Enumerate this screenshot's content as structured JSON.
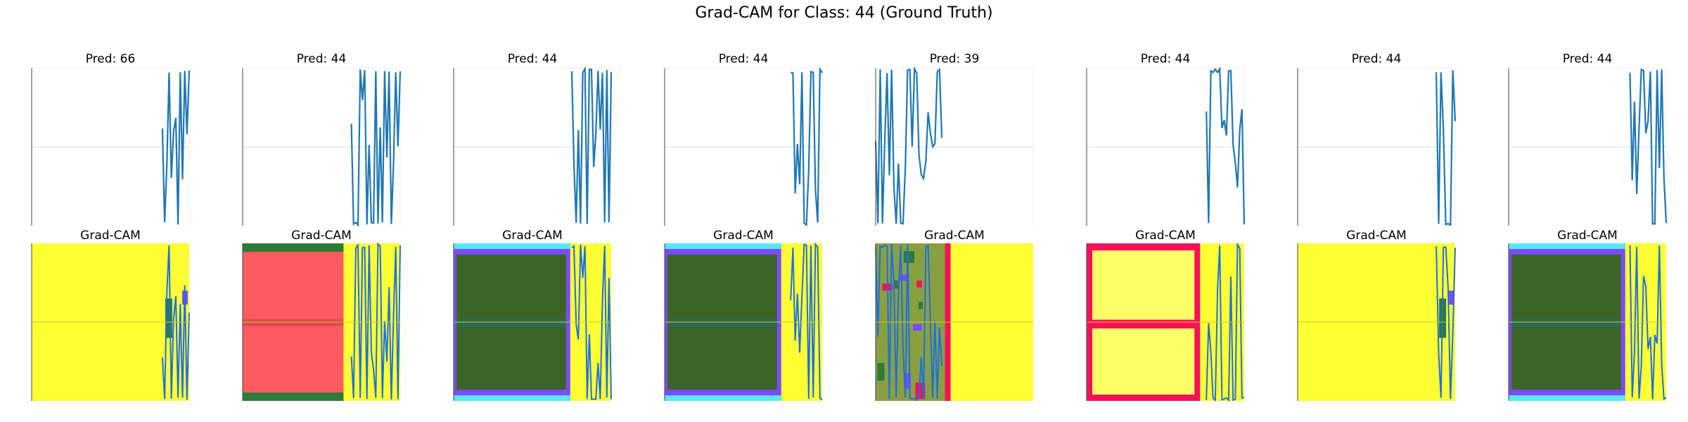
{
  "figure": {
    "title": "Grad-CAM for Class: 44 (Ground Truth)"
  },
  "colors": {
    "signal": "#1f77b4",
    "cam_yellow": "#ffff33",
    "cam_pale_yellow": "#ffff66",
    "cam_red": "#ff5a5f",
    "cam_crimson": "#f5115a",
    "cam_olive": "#3d6426",
    "cam_green": "#2f7a3a",
    "cam_purple": "#7a4cff",
    "cam_cyan": "#55e8ff",
    "axis": "#444444",
    "grid": "#dddddd"
  },
  "chart_data": {
    "type": "line",
    "grid": true,
    "panels": [
      {
        "pred_title": "Pred: 66",
        "cam_title": "Grad-CAM",
        "signal_region": [
          0.83,
          1.0
        ],
        "cam_style": "yellow_edge"
      },
      {
        "pred_title": "Pred: 44",
        "cam_title": "Grad-CAM",
        "signal_region": [
          0.69,
          1.0
        ],
        "cam_style": "red_block"
      },
      {
        "pred_title": "Pred: 44",
        "cam_title": "Grad-CAM",
        "signal_region": [
          0.75,
          1.0
        ],
        "cam_style": "olive_block"
      },
      {
        "pred_title": "Pred: 44",
        "cam_title": "Grad-CAM",
        "signal_region": [
          0.8,
          1.0
        ],
        "cam_style": "olive_block"
      },
      {
        "pred_title": "Pred: 39",
        "cam_title": "Grad-CAM",
        "signal_region": [
          0.0,
          0.42
        ],
        "cam_style": "left_mixed"
      },
      {
        "pred_title": "Pred: 44",
        "cam_title": "Grad-CAM",
        "signal_region": [
          0.76,
          1.0
        ],
        "cam_style": "pale_split"
      },
      {
        "pred_title": "Pred: 44",
        "cam_title": "Grad-CAM",
        "signal_region": [
          0.88,
          1.0
        ],
        "cam_style": "yellow_edge"
      },
      {
        "pred_title": "Pred: 44",
        "cam_title": "Grad-CAM",
        "signal_region": [
          0.77,
          1.0
        ],
        "cam_style": "olive_block"
      }
    ]
  }
}
